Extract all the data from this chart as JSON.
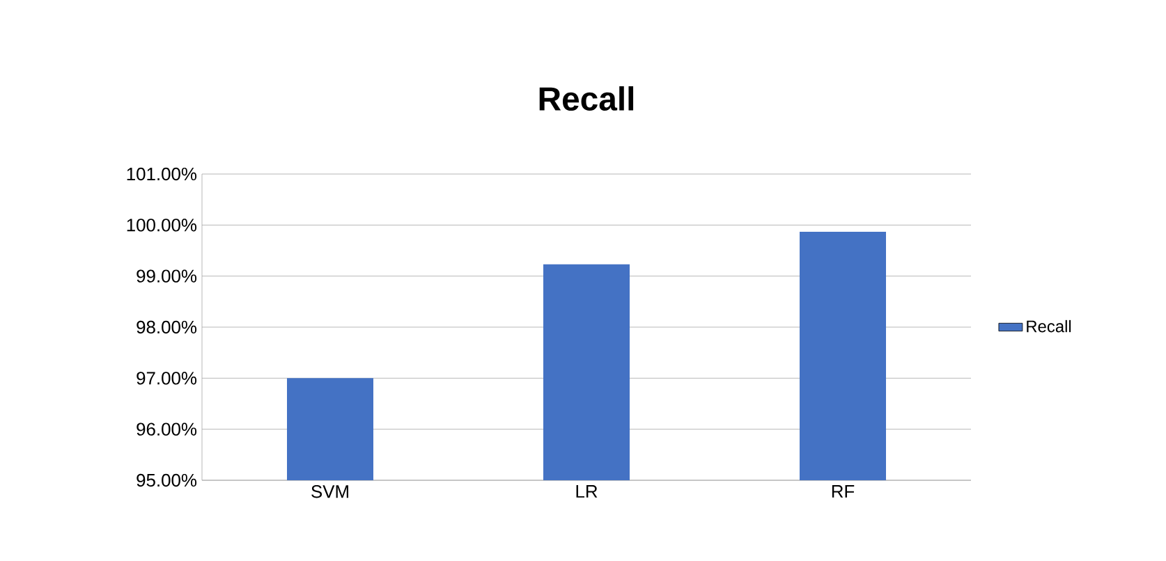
{
  "chart_data": {
    "type": "bar",
    "title": "Recall",
    "categories": [
      "SVM",
      "LR",
      "RF"
    ],
    "series": [
      {
        "name": "Recall",
        "color": "#4472c4",
        "values": [
          97.0,
          99.23,
          99.87
        ]
      }
    ],
    "ylim": [
      95,
      101
    ],
    "yticks": [
      {
        "value": 95,
        "label": "95.00%"
      },
      {
        "value": 96,
        "label": "96.00%"
      },
      {
        "value": 97,
        "label": "97.00%"
      },
      {
        "value": 98,
        "label": "98.00%"
      },
      {
        "value": 99,
        "label": "99.00%"
      },
      {
        "value": 100,
        "label": "100.00%"
      },
      {
        "value": 101,
        "label": "101.00%"
      }
    ],
    "grid": "y",
    "legend": "right"
  }
}
